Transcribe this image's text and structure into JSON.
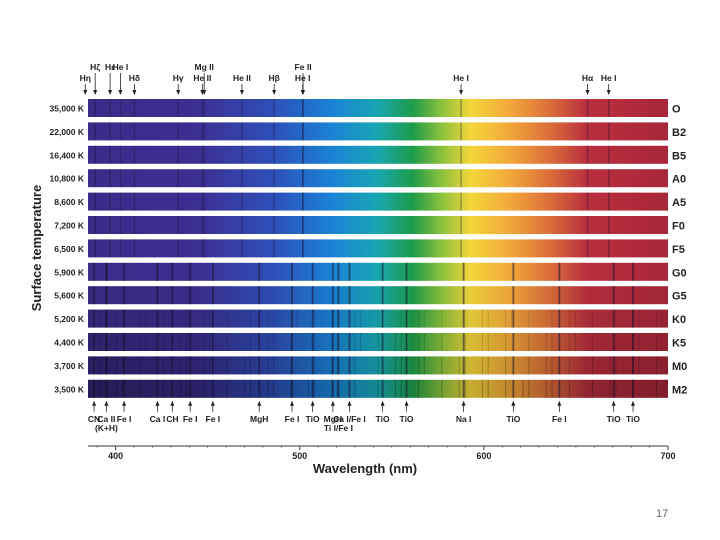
{
  "axis": {
    "y_label": "Surface temperature",
    "x_label": "Wavelength (nm)",
    "x_ticks": [
      "400",
      "500",
      "600",
      "700"
    ],
    "x_tick_values": [
      400,
      500,
      600,
      700
    ],
    "x_range": [
      385,
      700
    ]
  },
  "spectra": [
    {
      "temperature": "35,000 K",
      "type": "O"
    },
    {
      "temperature": "22,000 K",
      "type": "B2"
    },
    {
      "temperature": "16,400 K",
      "type": "B5"
    },
    {
      "temperature": "10,800 K",
      "type": "A0"
    },
    {
      "temperature": "8,600 K",
      "type": "A5"
    },
    {
      "temperature": "7,200 K",
      "type": "F0"
    },
    {
      "temperature": "6,500 K",
      "type": "F5"
    },
    {
      "temperature": "5,900 K",
      "type": "G0"
    },
    {
      "temperature": "5,600 K",
      "type": "G5"
    },
    {
      "temperature": "5,200 K",
      "type": "K0"
    },
    {
      "temperature": "4,400 K",
      "type": "K5"
    },
    {
      "temperature": "3,700 K",
      "type": "M0"
    },
    {
      "temperature": "3,500 K",
      "type": "M2"
    }
  ],
  "top_lines": [
    {
      "label": "Hη",
      "wavelength": 383.5,
      "tier": 2
    },
    {
      "label": "Hε",
      "wavelength": 397.0,
      "tier": 1
    },
    {
      "label": "Hζ",
      "wavelength": 388.9,
      "tier": 1
    },
    {
      "label": "He I",
      "wavelength": 402.6,
      "tier": 1
    },
    {
      "label": "Hδ",
      "wavelength": 410.2,
      "tier": 2
    },
    {
      "label": "Hγ",
      "wavelength": 434.0,
      "tier": 2
    },
    {
      "label": "Mg II",
      "wavelength": 448.1,
      "tier": 1
    },
    {
      "label": "He II",
      "wavelength": 447.1,
      "tier": 2
    },
    {
      "label": "He II",
      "wavelength": 468.6,
      "tier": 2
    },
    {
      "label": "Hβ",
      "wavelength": 486.1,
      "tier": 2
    },
    {
      "label": "Fe II",
      "wavelength": 501.8,
      "tier": 1
    },
    {
      "label": "He I",
      "wavelength": 501.6,
      "tier": 2
    },
    {
      "label": "He I",
      "wavelength": 587.6,
      "tier": 2
    },
    {
      "label": "Hα",
      "wavelength": 656.3,
      "tier": 2
    },
    {
      "label": "He I",
      "wavelength": 667.8,
      "tier": 2
    }
  ],
  "bottom_lines": [
    {
      "label": "CN",
      "wavelength": 388.3
    },
    {
      "label": "Ca II",
      "wavelength": 395.0
    },
    {
      "label": "(K+H)",
      "wavelength": 395.0
    },
    {
      "label": "Fe I",
      "wavelength": 404.6
    },
    {
      "label": "Ca I",
      "wavelength": 422.7
    },
    {
      "label": "CH",
      "wavelength": 430.8
    },
    {
      "label": "Fe I",
      "wavelength": 440.5
    },
    {
      "label": "Fe I",
      "wavelength": 452.8
    },
    {
      "label": "MgH",
      "wavelength": 478.0
    },
    {
      "label": "Fe I",
      "wavelength": 495.8
    },
    {
      "label": "TiO",
      "wavelength": 507.0
    },
    {
      "label": "MgH",
      "wavelength": 518.0
    },
    {
      "label": "Ti I/Fe I",
      "wavelength": 521.0
    },
    {
      "label": "Ca I/Fe I",
      "wavelength": 527.0
    },
    {
      "label": "TiO",
      "wavelength": 545.0
    },
    {
      "label": "TiO",
      "wavelength": 558.0
    },
    {
      "label": "Na I",
      "wavelength": 589.0
    },
    {
      "label": "TiO",
      "wavelength": 616.0
    },
    {
      "label": "Fe I",
      "wavelength": 641.0
    },
    {
      "label": "TiO",
      "wavelength": 670.5
    },
    {
      "label": "TiO",
      "wavelength": 681.0
    }
  ],
  "page_number": "17",
  "colors": {
    "violet": "#3a2a86",
    "blue": "#1d7fd0",
    "green": "#1a9a3c",
    "yellow": "#f2d23a",
    "red": "#b5303c",
    "text": "#222222"
  }
}
